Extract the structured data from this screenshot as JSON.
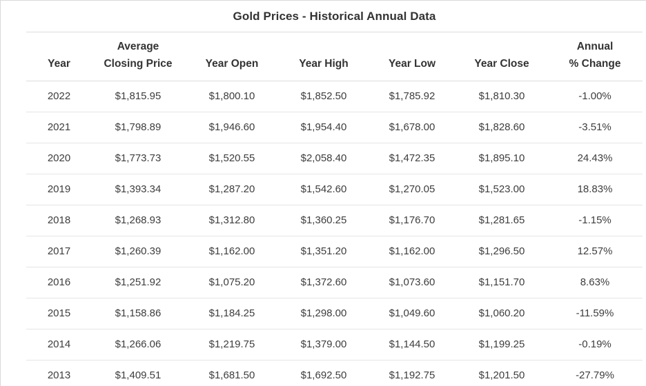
{
  "page_title": "Gold Prices - Historical Annual Data",
  "colors": {
    "positive_change": "#1e7e34",
    "negative_change": "#d22b2b",
    "body_text": "#3d3d3d",
    "header_text": "#333333",
    "row_divider": "#e5e5e5",
    "header_divider": "#dcdcdc",
    "background": "#ffffff"
  },
  "columns_display": [
    "Year",
    "Average\nClosing Price",
    "Year Open",
    "Year High",
    "Year Low",
    "Year Close",
    "Annual\n% Change"
  ],
  "chart_data": {
    "type": "table",
    "title": "Gold Prices - Historical Annual Data",
    "columns": [
      "Year",
      "Average Closing Price",
      "Year Open",
      "Year High",
      "Year Low",
      "Year Close",
      "Annual % Change"
    ],
    "rows": [
      [
        "2022",
        "$1,815.95",
        "$1,800.10",
        "$1,852.50",
        "$1,785.92",
        "$1,810.30",
        "-1.00%"
      ],
      [
        "2021",
        "$1,798.89",
        "$1,946.60",
        "$1,954.40",
        "$1,678.00",
        "$1,828.60",
        "-3.51%"
      ],
      [
        "2020",
        "$1,773.73",
        "$1,520.55",
        "$2,058.40",
        "$1,472.35",
        "$1,895.10",
        "24.43%"
      ],
      [
        "2019",
        "$1,393.34",
        "$1,287.20",
        "$1,542.60",
        "$1,270.05",
        "$1,523.00",
        "18.83%"
      ],
      [
        "2018",
        "$1,268.93",
        "$1,312.80",
        "$1,360.25",
        "$1,176.70",
        "$1,281.65",
        "-1.15%"
      ],
      [
        "2017",
        "$1,260.39",
        "$1,162.00",
        "$1,351.20",
        "$1,162.00",
        "$1,296.50",
        "12.57%"
      ],
      [
        "2016",
        "$1,251.92",
        "$1,075.20",
        "$1,372.60",
        "$1,073.60",
        "$1,151.70",
        "8.63%"
      ],
      [
        "2015",
        "$1,158.86",
        "$1,184.25",
        "$1,298.00",
        "$1,049.60",
        "$1,060.20",
        "-11.59%"
      ],
      [
        "2014",
        "$1,266.06",
        "$1,219.75",
        "$1,379.00",
        "$1,144.50",
        "$1,199.25",
        "-0.19%"
      ],
      [
        "2013",
        "$1,409.51",
        "$1,681.50",
        "$1,692.50",
        "$1,192.75",
        "$1,201.50",
        "-27.79%"
      ]
    ]
  }
}
